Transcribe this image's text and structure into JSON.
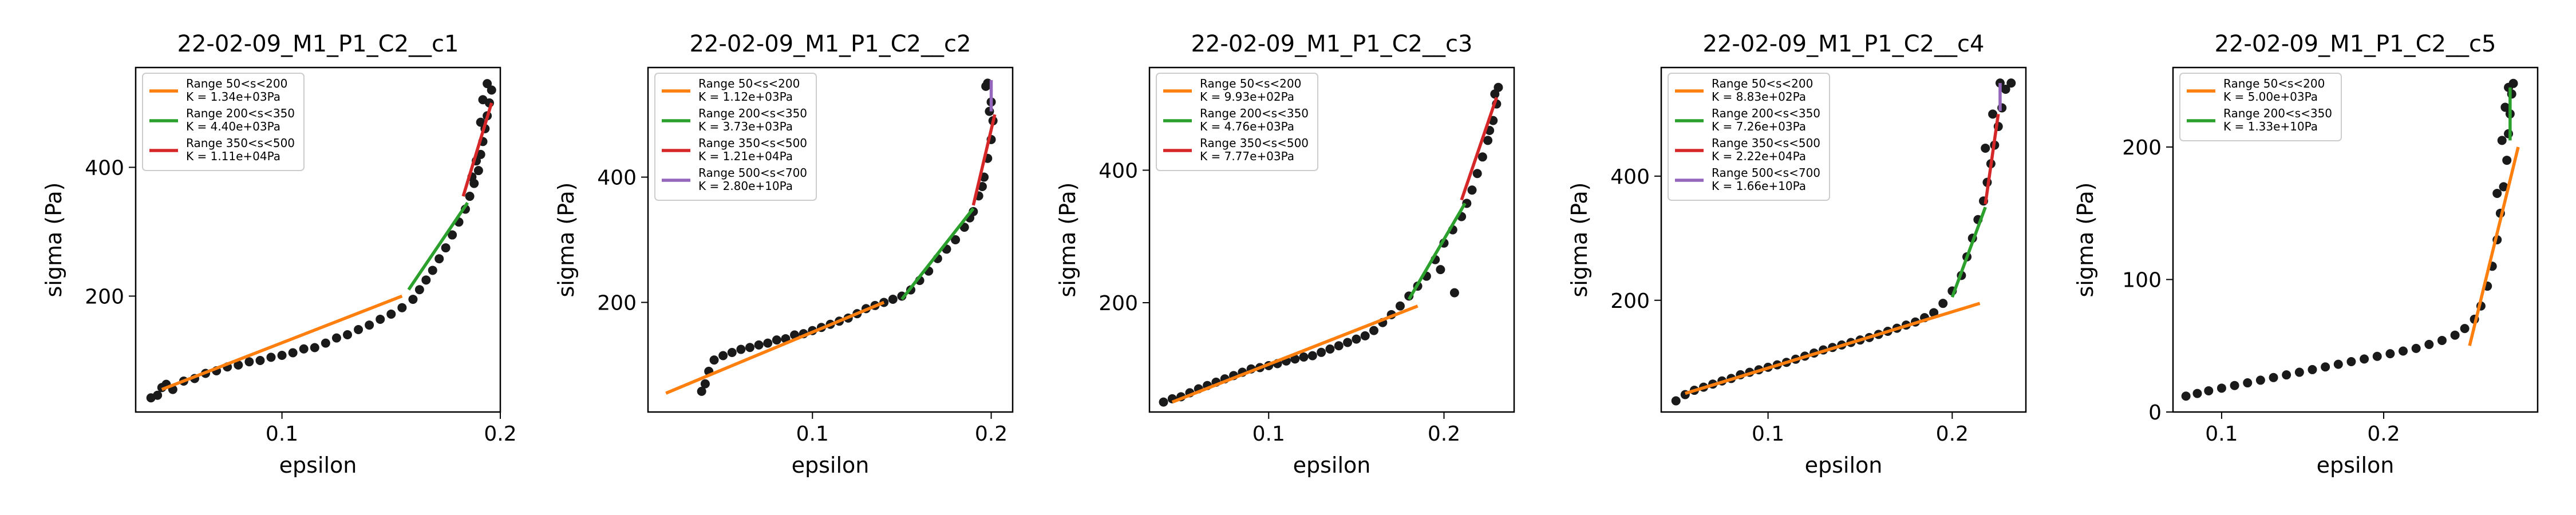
{
  "figure": {
    "background": "#ffffff"
  },
  "colors": {
    "range_50_200": "#ff7f0e",
    "range_200_350": "#2ca02c",
    "range_350_500": "#d62728",
    "range_500_700": "#9467bd",
    "points": "#1a1a1a"
  },
  "chart_data": [
    {
      "type": "scatter",
      "title": "22-02-09_M1_P1_C2__c1",
      "xlabel": "epsilon",
      "ylabel": "sigma (Pa)",
      "xlim": [
        0.033,
        0.2
      ],
      "ylim": [
        20,
        555
      ],
      "xticks": [
        {
          "v": 0.1,
          "label": "0.1"
        },
        {
          "v": 0.2,
          "label": "0.2"
        }
      ],
      "yticks": [
        {
          "v": 200,
          "label": "200"
        },
        {
          "v": 400,
          "label": "400"
        }
      ],
      "legend_position": "upper-left",
      "points": [
        [
          0.04,
          42
        ],
        [
          0.043,
          46
        ],
        [
          0.045,
          58
        ],
        [
          0.047,
          63
        ],
        [
          0.05,
          55
        ],
        [
          0.055,
          68
        ],
        [
          0.06,
          72
        ],
        [
          0.065,
          80
        ],
        [
          0.07,
          84
        ],
        [
          0.075,
          90
        ],
        [
          0.08,
          93
        ],
        [
          0.085,
          98
        ],
        [
          0.09,
          100
        ],
        [
          0.095,
          105
        ],
        [
          0.1,
          108
        ],
        [
          0.105,
          112
        ],
        [
          0.11,
          118
        ],
        [
          0.115,
          120
        ],
        [
          0.12,
          127
        ],
        [
          0.125,
          135
        ],
        [
          0.13,
          140
        ],
        [
          0.135,
          148
        ],
        [
          0.14,
          155
        ],
        [
          0.145,
          164
        ],
        [
          0.15,
          172
        ],
        [
          0.155,
          182
        ],
        [
          0.16,
          195
        ],
        [
          0.163,
          210
        ],
        [
          0.166,
          225
        ],
        [
          0.169,
          240
        ],
        [
          0.172,
          258
        ],
        [
          0.175,
          275
        ],
        [
          0.178,
          295
        ],
        [
          0.181,
          315
        ],
        [
          0.184,
          335
        ],
        [
          0.186,
          355
        ],
        [
          0.188,
          375
        ],
        [
          0.19,
          395
        ],
        [
          0.191,
          420
        ],
        [
          0.192,
          440
        ],
        [
          0.193,
          460
        ],
        [
          0.194,
          480
        ],
        [
          0.195,
          500
        ],
        [
          0.196,
          520
        ],
        [
          0.194,
          530
        ],
        [
          0.192,
          505
        ],
        [
          0.191,
          470
        ],
        [
          0.189,
          410
        ],
        [
          0.187,
          385
        ]
      ],
      "fits": [
        {
          "name": "Range 50<s<200",
          "k_label": "K = 1.34e+03Pa",
          "color": "#ff7f0e",
          "line": [
            [
              0.045,
              55
            ],
            [
              0.155,
              200
            ]
          ]
        },
        {
          "name": "Range 200<s<350",
          "k_label": "K = 4.40e+03Pa",
          "color": "#2ca02c",
          "line": [
            [
              0.158,
              210
            ],
            [
              0.185,
              345
            ]
          ]
        },
        {
          "name": "Range 350<s<500",
          "k_label": "K = 1.11e+04Pa",
          "color": "#d62728",
          "line": [
            [
              0.183,
              355
            ],
            [
              0.196,
              500
            ]
          ]
        }
      ]
    },
    {
      "type": "scatter",
      "title": "22-02-09_M1_P1_C2__c2",
      "xlabel": "epsilon",
      "ylabel": "sigma (Pa)",
      "xlim": [
        0.008,
        0.212
      ],
      "ylim": [
        25,
        575
      ],
      "xticks": [
        {
          "v": 0.1,
          "label": "0.1"
        },
        {
          "v": 0.2,
          "label": "0.2"
        }
      ],
      "yticks": [
        {
          "v": 200,
          "label": "200"
        },
        {
          "v": 400,
          "label": "400"
        }
      ],
      "legend_position": "upper-left",
      "points": [
        [
          0.038,
          58
        ],
        [
          0.04,
          70
        ],
        [
          0.042,
          90
        ],
        [
          0.045,
          108
        ],
        [
          0.05,
          115
        ],
        [
          0.055,
          120
        ],
        [
          0.06,
          125
        ],
        [
          0.065,
          128
        ],
        [
          0.07,
          132
        ],
        [
          0.075,
          135
        ],
        [
          0.08,
          140
        ],
        [
          0.085,
          142
        ],
        [
          0.09,
          148
        ],
        [
          0.095,
          150
        ],
        [
          0.1,
          155
        ],
        [
          0.105,
          160
        ],
        [
          0.11,
          165
        ],
        [
          0.115,
          170
        ],
        [
          0.12,
          175
        ],
        [
          0.125,
          182
        ],
        [
          0.13,
          190
        ],
        [
          0.135,
          195
        ],
        [
          0.14,
          200
        ],
        [
          0.145,
          205
        ],
        [
          0.15,
          210
        ],
        [
          0.155,
          220
        ],
        [
          0.16,
          235
        ],
        [
          0.165,
          250
        ],
        [
          0.17,
          270
        ],
        [
          0.175,
          285
        ],
        [
          0.18,
          300
        ],
        [
          0.185,
          320
        ],
        [
          0.19,
          345
        ],
        [
          0.193,
          370
        ],
        [
          0.196,
          400
        ],
        [
          0.198,
          430
        ],
        [
          0.2,
          460
        ],
        [
          0.201,
          490
        ],
        [
          0.2,
          520
        ],
        [
          0.198,
          550
        ],
        [
          0.197,
          545
        ],
        [
          0.199,
          505
        ],
        [
          0.195,
          385
        ],
        [
          0.188,
          335
        ]
      ],
      "fits": [
        {
          "name": "Range 50<s<200",
          "k_label": "K = 1.12e+03Pa",
          "color": "#ff7f0e",
          "line": [
            [
              0.018,
              55
            ],
            [
              0.14,
              200
            ]
          ]
        },
        {
          "name": "Range 200<s<350",
          "k_label": "K = 3.73e+03Pa",
          "color": "#2ca02c",
          "line": [
            [
              0.15,
              205
            ],
            [
              0.19,
              350
            ]
          ]
        },
        {
          "name": "Range 350<s<500",
          "k_label": "K = 1.21e+04Pa",
          "color": "#d62728",
          "line": [
            [
              0.19,
              355
            ],
            [
              0.202,
              500
            ]
          ]
        },
        {
          "name": "Range 500<s<700",
          "k_label": "K = 2.80e+10Pa",
          "color": "#9467bd",
          "line": [
            [
              0.2,
              505
            ],
            [
              0.2,
              555
            ]
          ]
        }
      ]
    },
    {
      "type": "scatter",
      "title": "22-02-09_M1_P1_C2__c3",
      "xlabel": "epsilon",
      "ylabel": "sigma (Pa)",
      "xlim": [
        0.032,
        0.24
      ],
      "ylim": [
        35,
        555
      ],
      "xticks": [
        {
          "v": 0.1,
          "label": "0.1"
        },
        {
          "v": 0.2,
          "label": "0.2"
        }
      ],
      "yticks": [
        {
          "v": 200,
          "label": "200"
        },
        {
          "v": 400,
          "label": "400"
        }
      ],
      "legend_position": "upper-left",
      "points": [
        [
          0.04,
          50
        ],
        [
          0.045,
          55
        ],
        [
          0.05,
          58
        ],
        [
          0.055,
          64
        ],
        [
          0.06,
          70
        ],
        [
          0.065,
          75
        ],
        [
          0.07,
          80
        ],
        [
          0.075,
          85
        ],
        [
          0.08,
          90
        ],
        [
          0.085,
          95
        ],
        [
          0.09,
          100
        ],
        [
          0.095,
          102
        ],
        [
          0.1,
          105
        ],
        [
          0.105,
          108
        ],
        [
          0.11,
          112
        ],
        [
          0.115,
          115
        ],
        [
          0.12,
          118
        ],
        [
          0.125,
          120
        ],
        [
          0.13,
          125
        ],
        [
          0.135,
          130
        ],
        [
          0.14,
          135
        ],
        [
          0.145,
          140
        ],
        [
          0.15,
          145
        ],
        [
          0.155,
          150
        ],
        [
          0.16,
          158
        ],
        [
          0.165,
          170
        ],
        [
          0.17,
          182
        ],
        [
          0.175,
          195
        ],
        [
          0.18,
          210
        ],
        [
          0.185,
          225
        ],
        [
          0.19,
          240
        ],
        [
          0.195,
          265
        ],
        [
          0.2,
          290
        ],
        [
          0.205,
          310
        ],
        [
          0.21,
          330
        ],
        [
          0.213,
          350
        ],
        [
          0.216,
          370
        ],
        [
          0.219,
          395
        ],
        [
          0.222,
          420
        ],
        [
          0.225,
          445
        ],
        [
          0.228,
          475
        ],
        [
          0.23,
          500
        ],
        [
          0.231,
          525
        ],
        [
          0.229,
          515
        ],
        [
          0.226,
          460
        ],
        [
          0.198,
          250
        ],
        [
          0.206,
          215
        ]
      ],
      "fits": [
        {
          "name": "Range 50<s<200",
          "k_label": "K = 9.93e+02Pa",
          "color": "#ff7f0e",
          "line": [
            [
              0.045,
              50
            ],
            [
              0.185,
              195
            ]
          ]
        },
        {
          "name": "Range 200<s<350",
          "k_label": "K = 4.76e+03Pa",
          "color": "#2ca02c",
          "line": [
            [
              0.18,
              205
            ],
            [
              0.212,
              350
            ]
          ]
        },
        {
          "name": "Range 350<s<500",
          "k_label": "K = 7.77e+03Pa",
          "color": "#d62728",
          "line": [
            [
              0.21,
              355
            ],
            [
              0.23,
              510
            ]
          ]
        }
      ]
    },
    {
      "type": "scatter",
      "title": "22-02-09_M1_P1_C2__c4",
      "xlabel": "epsilon",
      "ylabel": "sigma (Pa)",
      "xlim": [
        0.042,
        0.24
      ],
      "ylim": [
        20,
        575
      ],
      "xticks": [
        {
          "v": 0.1,
          "label": "0.1"
        },
        {
          "v": 0.2,
          "label": "0.2"
        }
      ],
      "yticks": [
        {
          "v": 200,
          "label": "200"
        },
        {
          "v": 400,
          "label": "400"
        }
      ],
      "legend_position": "upper-left",
      "points": [
        [
          0.05,
          38
        ],
        [
          0.055,
          48
        ],
        [
          0.06,
          55
        ],
        [
          0.065,
          60
        ],
        [
          0.07,
          65
        ],
        [
          0.075,
          70
        ],
        [
          0.08,
          74
        ],
        [
          0.085,
          80
        ],
        [
          0.09,
          84
        ],
        [
          0.095,
          88
        ],
        [
          0.1,
          92
        ],
        [
          0.105,
          96
        ],
        [
          0.11,
          100
        ],
        [
          0.115,
          105
        ],
        [
          0.12,
          110
        ],
        [
          0.125,
          115
        ],
        [
          0.13,
          120
        ],
        [
          0.135,
          124
        ],
        [
          0.14,
          128
        ],
        [
          0.145,
          132
        ],
        [
          0.15,
          136
        ],
        [
          0.155,
          140
        ],
        [
          0.16,
          145
        ],
        [
          0.165,
          150
        ],
        [
          0.17,
          155
        ],
        [
          0.175,
          160
        ],
        [
          0.18,
          165
        ],
        [
          0.185,
          172
        ],
        [
          0.19,
          180
        ],
        [
          0.195,
          195
        ],
        [
          0.2,
          215
        ],
        [
          0.205,
          240
        ],
        [
          0.208,
          270
        ],
        [
          0.211,
          300
        ],
        [
          0.214,
          330
        ],
        [
          0.217,
          360
        ],
        [
          0.219,
          390
        ],
        [
          0.221,
          420
        ],
        [
          0.223,
          450
        ],
        [
          0.225,
          480
        ],
        [
          0.227,
          510
        ],
        [
          0.229,
          540
        ],
        [
          0.232,
          550
        ],
        [
          0.226,
          550
        ],
        [
          0.222,
          500
        ],
        [
          0.218,
          445
        ]
      ],
      "fits": [
        {
          "name": "Range 50<s<200",
          "k_label": "K = 8.83e+02Pa",
          "color": "#ff7f0e",
          "line": [
            [
              0.055,
              50
            ],
            [
              0.215,
              195
            ]
          ]
        },
        {
          "name": "Range 200<s<350",
          "k_label": "K = 7.26e+03Pa",
          "color": "#2ca02c",
          "line": [
            [
              0.2,
              205
            ],
            [
              0.218,
              350
            ]
          ]
        },
        {
          "name": "Range 350<s<500",
          "k_label": "K = 2.22e+04Pa",
          "color": "#d62728",
          "line": [
            [
              0.218,
              355
            ],
            [
              0.225,
              500
            ]
          ]
        },
        {
          "name": "Range 500<s<700",
          "k_label": "K = 1.66e+10Pa",
          "color": "#9467bd",
          "line": [
            [
              0.226,
              505
            ],
            [
              0.226,
              550
            ]
          ]
        }
      ]
    },
    {
      "type": "scatter",
      "title": "22-02-09_M1_P1_C2__c5",
      "xlabel": "epsilon",
      "ylabel": "sigma (Pa)",
      "xlim": [
        0.07,
        0.295
      ],
      "ylim": [
        0,
        260
      ],
      "xticks": [
        {
          "v": 0.1,
          "label": "0.1"
        },
        {
          "v": 0.2,
          "label": "0.2"
        }
      ],
      "yticks": [
        {
          "v": 0,
          "label": "0"
        },
        {
          "v": 100,
          "label": "100"
        },
        {
          "v": 200,
          "label": "200"
        }
      ],
      "legend_position": "upper-left",
      "points": [
        [
          0.078,
          12
        ],
        [
          0.085,
          14
        ],
        [
          0.092,
          16
        ],
        [
          0.1,
          18
        ],
        [
          0.108,
          20
        ],
        [
          0.116,
          22
        ],
        [
          0.124,
          24
        ],
        [
          0.132,
          26
        ],
        [
          0.14,
          28
        ],
        [
          0.148,
          30
        ],
        [
          0.156,
          32
        ],
        [
          0.164,
          34
        ],
        [
          0.172,
          36
        ],
        [
          0.18,
          38
        ],
        [
          0.188,
          40
        ],
        [
          0.196,
          42
        ],
        [
          0.204,
          44
        ],
        [
          0.212,
          46
        ],
        [
          0.22,
          48
        ],
        [
          0.228,
          51
        ],
        [
          0.236,
          54
        ],
        [
          0.244,
          58
        ],
        [
          0.25,
          63
        ],
        [
          0.256,
          70
        ],
        [
          0.26,
          80
        ],
        [
          0.264,
          95
        ],
        [
          0.267,
          110
        ],
        [
          0.27,
          130
        ],
        [
          0.272,
          150
        ],
        [
          0.274,
          170
        ],
        [
          0.276,
          190
        ],
        [
          0.277,
          210
        ],
        [
          0.278,
          225
        ],
        [
          0.279,
          240
        ],
        [
          0.28,
          248
        ],
        [
          0.277,
          245
        ],
        [
          0.275,
          230
        ],
        [
          0.273,
          205
        ],
        [
          0.27,
          165
        ]
      ],
      "fits": [
        {
          "name": "Range 50<s<200",
          "k_label": "K = 5.00e+03Pa",
          "color": "#ff7f0e",
          "line": [
            [
              0.253,
              50
            ],
            [
              0.283,
              200
            ]
          ]
        },
        {
          "name": "Range 200<s<350",
          "k_label": "K = 1.33e+10Pa",
          "color": "#2ca02c",
          "line": [
            [
              0.278,
              205
            ],
            [
              0.278,
              245
            ]
          ]
        }
      ]
    }
  ]
}
